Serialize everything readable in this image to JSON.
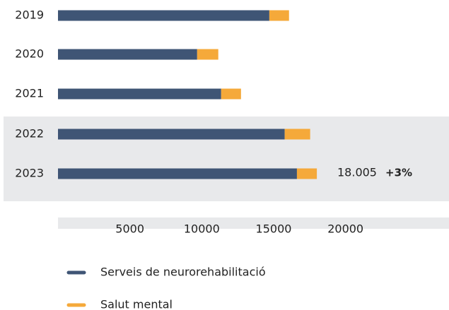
{
  "chart_data": {
    "type": "bar",
    "orientation": "horizontal",
    "stacked": true,
    "categories": [
      "2019",
      "2020",
      "2021",
      "2022",
      "2023"
    ],
    "series": [
      {
        "name": "Serveis de neurorehabilitació",
        "color": "#3f5575",
        "values": [
          14700,
          9680,
          11350,
          15770,
          16620
        ]
      },
      {
        "name": "Salut mental",
        "color": "#f5a93a",
        "values": [
          1370,
          1470,
          1380,
          1770,
          1385
        ]
      }
    ],
    "xlim": [
      0,
      27000
    ],
    "xticks": [
      5000,
      10000,
      15000,
      20000
    ],
    "annotations": [
      "18.005",
      "+3%"
    ]
  }
}
